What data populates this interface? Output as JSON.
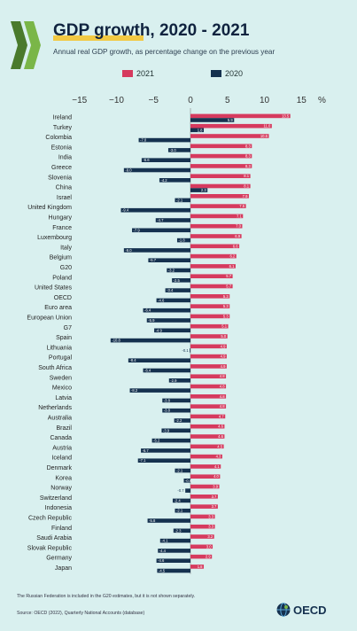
{
  "header": {
    "title": "GDP growth, 2020 - 2021",
    "subtitle": "Annual real GDP growth, as percentage change on the previous year"
  },
  "footer": {
    "footnote": "The Russian Federation is included in the G20 estimates, but it is not shown separately.",
    "source": "Source: OECD (2022), Quarterly National Accounts (database)",
    "logo_text": "OECD"
  },
  "colors": {
    "y2021": "#d63a5e",
    "y2020": "#15314f",
    "background": "#d9f0ef"
  },
  "chart_data": {
    "type": "bar",
    "orientation": "horizontal",
    "xlim": [
      -15,
      15
    ],
    "xticks": [
      -15,
      -10,
      -5,
      0,
      5,
      10,
      15
    ],
    "unit_label": "%",
    "legend_position": "top",
    "categories": [
      "Ireland",
      "Turkey",
      "Colombia",
      "Estonia",
      "India",
      "Greece",
      "Slovenia",
      "China",
      "Israel",
      "United Kingdom",
      "Hungary",
      "France",
      "Luxembourg",
      "Italy",
      "Belgium",
      "G20",
      "Poland",
      "United States",
      "OECD",
      "Euro area",
      "European Union",
      "G7",
      "Spain",
      "Lithuania",
      "Portugal",
      "South Africa",
      "Sweden",
      "Mexico",
      "Latvia",
      "Netherlands",
      "Australia",
      "Brazil",
      "Canada",
      "Austria",
      "Iceland",
      "Denmark",
      "Korea",
      "Norway",
      "Switzerland",
      "Indonesia",
      "Czech Republic",
      "Finland",
      "Saudi Arabia",
      "Slovak Republic",
      "Germany",
      "Japan"
    ],
    "series": [
      {
        "name": "2021",
        "values": [
          13.5,
          11.0,
          10.6,
          8.3,
          8.3,
          8.3,
          8.1,
          8.1,
          7.9,
          7.5,
          7.1,
          7.0,
          6.9,
          6.6,
          6.2,
          6.1,
          5.7,
          5.7,
          5.3,
          5.3,
          5.3,
          5.1,
          5.0,
          4.9,
          4.9,
          4.9,
          4.8,
          4.8,
          4.8,
          4.8,
          4.7,
          4.6,
          4.6,
          4.5,
          4.3,
          4.1,
          4.0,
          3.9,
          3.7,
          3.7,
          3.3,
          3.3,
          3.2,
          3.0,
          2.9,
          1.8
        ]
      },
      {
        "name": "2020",
        "values": [
          5.9,
          1.8,
          -7.0,
          -3.0,
          -6.6,
          -9.0,
          -4.2,
          2.3,
          -2.1,
          -9.4,
          -4.7,
          -7.9,
          -1.8,
          -9.0,
          -5.7,
          -3.2,
          -2.5,
          -3.4,
          -4.6,
          -6.4,
          -5.9,
          -4.9,
          -10.8,
          -0.1,
          -8.4,
          -6.4,
          -2.9,
          -8.2,
          -3.8,
          -3.8,
          -2.2,
          -3.9,
          -5.2,
          -6.7,
          -7.1,
          -2.1,
          -0.9,
          -0.7,
          -2.4,
          -2.1,
          -5.8,
          -2.3,
          -4.1,
          -4.4,
          -4.6,
          -4.5
        ]
      }
    ]
  }
}
